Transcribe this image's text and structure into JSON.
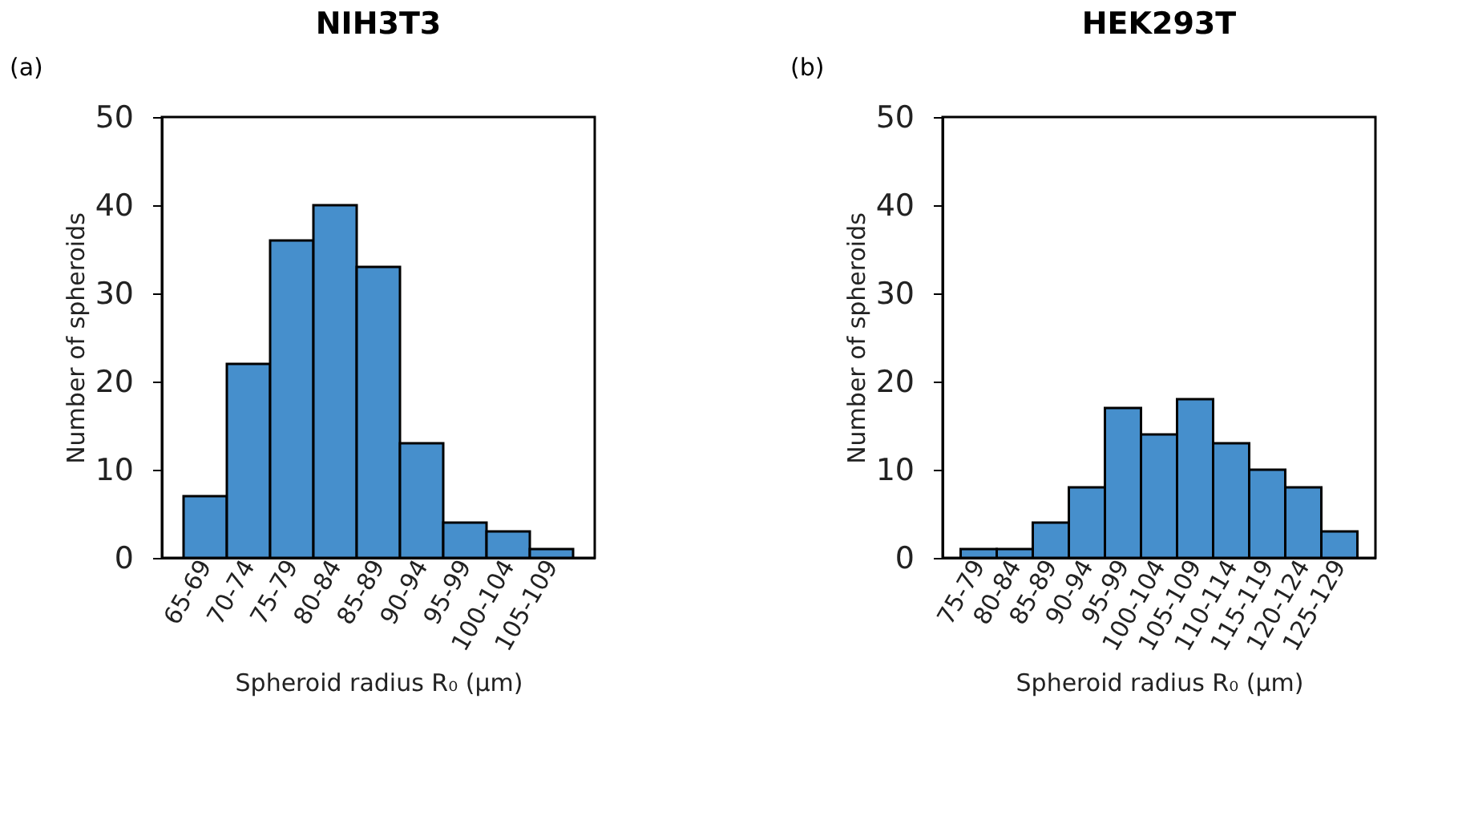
{
  "chart_data": [
    {
      "type": "bar",
      "title": "NIH3T3",
      "xlabel": "Spheroid radius R₀ (μm)",
      "ylabel": "Number of spheroids",
      "annotations": [
        "(a)"
      ],
      "categories": [
        "65-69",
        "70-74",
        "75-79",
        "80-84",
        "85-89",
        "90-94",
        "95-99",
        "100-104",
        "105-109"
      ],
      "series": [
        {
          "color": "#468fcc",
          "values": [
            7,
            22,
            36,
            40,
            33,
            13,
            4,
            3,
            1
          ]
        }
      ],
      "ylim": [
        0,
        50
      ],
      "yticks": [
        0,
        10,
        20,
        30,
        40,
        50
      ],
      "grid": false
    },
    {
      "type": "bar",
      "title": "HEK293T",
      "xlabel": "Spheroid radius R₀ (μm)",
      "ylabel": "Number of spheroids",
      "annotations": [
        "(b)"
      ],
      "categories": [
        "75-79",
        "80-84",
        "85-89",
        "90-94",
        "95-99",
        "100-104",
        "105-109",
        "110-114",
        "115-119",
        "120-124",
        "125-129"
      ],
      "series": [
        {
          "color": "#468fcc",
          "values": [
            1,
            1,
            4,
            8,
            17,
            14,
            18,
            13,
            10,
            8,
            3
          ]
        }
      ],
      "ylim": [
        0,
        50
      ],
      "yticks": [
        0,
        10,
        20,
        30,
        40,
        50
      ],
      "grid": false
    }
  ]
}
